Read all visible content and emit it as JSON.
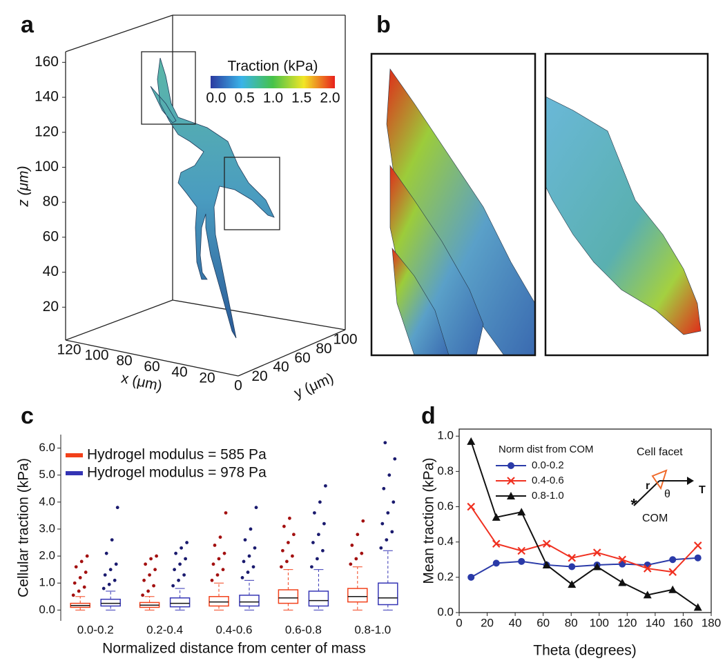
{
  "chart_data": [
    {
      "type": "surface3d",
      "label": "a",
      "xlabel": "x (μm)",
      "ylabel": "y (μm)",
      "zlabel": "z (μm)",
      "xlim": [
        0,
        130
      ],
      "xticks": [
        20,
        40,
        60,
        80,
        100,
        120
      ],
      "ylim": [
        0,
        105
      ],
      "yticks": [
        0,
        20,
        40,
        60,
        80,
        100
      ],
      "zlim": [
        0,
        170
      ],
      "zticks": [
        20,
        40,
        60,
        80,
        100,
        120,
        140,
        160
      ],
      "colorbar": {
        "title": "Traction (kPa)",
        "lim": [
          0,
          2
        ],
        "ticks": [
          {
            "value": 0,
            "label": "0.0"
          },
          {
            "value": 0.5,
            "label": "0.5"
          },
          {
            "value": 1,
            "label": "1.0"
          },
          {
            "value": 1.5,
            "label": "1.5"
          },
          {
            "value": 2,
            "label": "2.0"
          }
        ]
      }
    },
    {
      "type": "image",
      "label": "b"
    },
    {
      "type": "box",
      "label": "c",
      "ylabel": "Cellular traction (kPa)",
      "xlabel": "Normalized distance from center of mass",
      "categories": [
        "0.0-0.2",
        "0.2-0.4",
        "0.4-0.6",
        "0.6-0.8",
        "0.8-1.0"
      ],
      "ylim": [
        -0.4,
        6.5
      ],
      "yticks": [
        {
          "value": 0,
          "label": "0.0"
        },
        {
          "value": 1,
          "label": "1.0"
        },
        {
          "value": 2,
          "label": "2.0"
        },
        {
          "value": 3,
          "label": "3.0"
        },
        {
          "value": 4,
          "label": "4.0"
        },
        {
          "value": 5,
          "label": "5.0"
        },
        {
          "value": 6,
          "label": "6.0"
        }
      ],
      "series": [
        {
          "name": "Hydrogel modulus = 585 Pa",
          "color": "#f2401a",
          "outlier_color": "#a31010",
          "stats": [
            {
              "whislo": 0,
              "q1": 0.1,
              "med": 0.17,
              "q3": 0.25,
              "whishi": 0.5,
              "outliers": [
                0.55,
                0.7,
                0.85,
                1.0,
                1.2,
                1.4,
                1.6,
                1.8,
                2.0
              ]
            },
            {
              "whislo": 0,
              "q1": 0.1,
              "med": 0.18,
              "q3": 0.28,
              "whishi": 0.5,
              "outliers": [
                0.55,
                0.7,
                0.9,
                1.1,
                1.3,
                1.5,
                1.7,
                1.9,
                2.0
              ]
            },
            {
              "whislo": 0,
              "q1": 0.15,
              "med": 0.3,
              "q3": 0.5,
              "whishi": 1.0,
              "outliers": [
                1.1,
                1.3,
                1.5,
                1.7,
                1.9,
                2.1,
                2.4,
                2.7,
                3.6
              ]
            },
            {
              "whislo": 0,
              "q1": 0.25,
              "med": 0.45,
              "q3": 0.75,
              "whishi": 1.5,
              "outliers": [
                1.6,
                1.8,
                2.0,
                2.2,
                2.5,
                2.8,
                3.1,
                3.4
              ]
            },
            {
              "whislo": 0,
              "q1": 0.3,
              "med": 0.5,
              "q3": 0.8,
              "whishi": 1.6,
              "outliers": [
                1.7,
                1.9,
                2.1,
                2.4,
                2.8,
                3.3
              ]
            }
          ]
        },
        {
          "name": "Hydrogel modulus = 978 Pa",
          "color": "#3434b4",
          "outlier_color": "#1a1a6e",
          "stats": [
            {
              "whislo": 0,
              "q1": 0.15,
              "med": 0.25,
              "q3": 0.4,
              "whishi": 0.7,
              "outliers": [
                0.8,
                0.95,
                1.1,
                1.3,
                1.5,
                1.7,
                2.1,
                2.6,
                3.8
              ]
            },
            {
              "whislo": 0,
              "q1": 0.12,
              "med": 0.25,
              "q3": 0.45,
              "whishi": 0.8,
              "outliers": [
                0.9,
                1.1,
                1.3,
                1.5,
                1.7,
                1.9,
                2.1,
                2.3,
                2.5
              ]
            },
            {
              "whislo": 0,
              "q1": 0.15,
              "med": 0.3,
              "q3": 0.55,
              "whishi": 1.1,
              "outliers": [
                1.2,
                1.4,
                1.6,
                1.8,
                2.0,
                2.3,
                2.6,
                3.0,
                3.8
              ]
            },
            {
              "whislo": 0,
              "q1": 0.15,
              "med": 0.35,
              "q3": 0.7,
              "whishi": 1.5,
              "outliers": [
                1.6,
                1.9,
                2.2,
                2.5,
                2.8,
                3.2,
                3.6,
                4.0,
                4.6
              ]
            },
            {
              "whislo": 0,
              "q1": 0.2,
              "med": 0.45,
              "q3": 1.0,
              "whishi": 2.2,
              "outliers": [
                2.3,
                2.6,
                2.9,
                3.2,
                3.6,
                4.0,
                4.5,
                5.0,
                5.6,
                6.2
              ]
            }
          ]
        }
      ]
    },
    {
      "type": "line",
      "label": "d",
      "xlabel": "Theta (degrees)",
      "ylabel": "Mean traction (kPa)",
      "legend_title": "Norm dist from COM",
      "x": [
        8.5,
        26.5,
        44.5,
        62.5,
        80.5,
        98.5,
        116.5,
        134.5,
        152.5,
        170.5
      ],
      "xlim": [
        0,
        180
      ],
      "xticks": [
        0,
        20,
        40,
        60,
        80,
        100,
        120,
        140,
        160,
        180
      ],
      "ylim": [
        0,
        1.04
      ],
      "yticks": [
        {
          "value": 0,
          "label": "0.0"
        },
        {
          "value": 0.2,
          "label": "0.2"
        },
        {
          "value": 0.4,
          "label": "0.4"
        },
        {
          "value": 0.6,
          "label": "0.6"
        },
        {
          "value": 0.8,
          "label": "0.8"
        },
        {
          "value": 1,
          "label": "1.0"
        }
      ],
      "series": [
        {
          "name": "0.0-0.2",
          "color": "#2a3aa8",
          "marker": "circle",
          "values": [
            0.2,
            0.28,
            0.29,
            0.27,
            0.26,
            0.27,
            0.275,
            0.27,
            0.3,
            0.31
          ]
        },
        {
          "name": "0.4-0.6",
          "color": "#f03020",
          "marker": "x",
          "values": [
            0.6,
            0.39,
            0.35,
            0.39,
            0.31,
            0.34,
            0.3,
            0.25,
            0.23,
            0.38
          ]
        },
        {
          "name": "0.8-1.0",
          "color": "#111111",
          "marker": "triangle",
          "values": [
            0.97,
            0.54,
            0.57,
            0.27,
            0.16,
            0.26,
            0.17,
            0.1,
            0.13,
            0.03
          ]
        }
      ],
      "annotations": [
        "Cell facet",
        "r",
        "θ",
        "T",
        "COM"
      ]
    }
  ]
}
